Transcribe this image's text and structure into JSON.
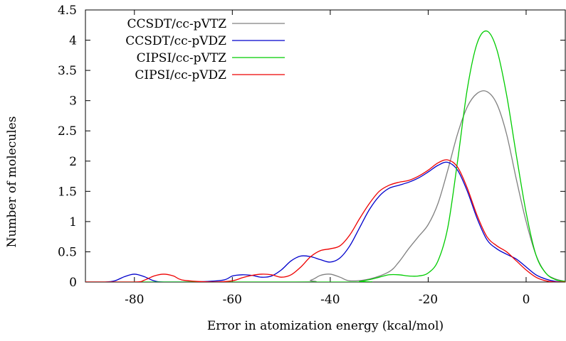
{
  "chart_data": {
    "type": "line",
    "title": "",
    "xlabel": "Error in atomization energy (kcal/mol)",
    "ylabel": "Number of molecules",
    "xlim": [
      -90,
      8
    ],
    "ylim": [
      0,
      4.5
    ],
    "xticks": [
      -80,
      -60,
      -40,
      -20,
      0
    ],
    "yticks": [
      0,
      0.5,
      1,
      1.5,
      2,
      2.5,
      3,
      3.5,
      4,
      4.5
    ],
    "grid": false,
    "legend_position": "top-left",
    "series": [
      {
        "name": "CCSDT/cc-pVTZ",
        "color": "#808080",
        "x": [
          -90,
          -47,
          -44,
          -42,
          -40,
          -38,
          -36,
          -32,
          -28,
          -26,
          -24,
          -22,
          -20,
          -18,
          -16,
          -14,
          -12,
          -10,
          -8,
          -6,
          -4,
          -2,
          0,
          2,
          4,
          6,
          8
        ],
        "y": [
          0,
          0,
          0.03,
          0.11,
          0.13,
          0.08,
          0.02,
          0.05,
          0.17,
          0.33,
          0.55,
          0.75,
          0.95,
          1.3,
          1.85,
          2.45,
          2.9,
          3.12,
          3.15,
          2.95,
          2.45,
          1.7,
          1.0,
          0.45,
          0.15,
          0.05,
          0.01
        ]
      },
      {
        "name": "CCSDT/cc-pVDZ",
        "color": "#0000cc",
        "x": [
          -90,
          -86,
          -84,
          -82,
          -80,
          -78,
          -76,
          -74,
          -68,
          -62,
          -60,
          -58,
          -56,
          -54,
          -52,
          -50,
          -48,
          -46,
          -44,
          -42,
          -40,
          -38,
          -36,
          -34,
          -32,
          -30,
          -28,
          -26,
          -24,
          -22,
          -20,
          -18,
          -16,
          -14,
          -12,
          -10,
          -8,
          -6,
          -4,
          -2,
          0,
          2,
          4,
          6,
          8
        ],
        "y": [
          0,
          0,
          0.02,
          0.09,
          0.13,
          0.09,
          0.02,
          0,
          0,
          0.03,
          0.1,
          0.12,
          0.11,
          0.08,
          0.1,
          0.2,
          0.35,
          0.43,
          0.42,
          0.37,
          0.33,
          0.4,
          0.6,
          0.9,
          1.2,
          1.42,
          1.55,
          1.6,
          1.65,
          1.72,
          1.82,
          1.93,
          1.98,
          1.85,
          1.5,
          1.05,
          0.7,
          0.55,
          0.46,
          0.38,
          0.25,
          0.12,
          0.05,
          0.01,
          0
        ]
      },
      {
        "name": "CIPSI/cc-pVTZ",
        "color": "#00cc00",
        "x": [
          -90,
          -36,
          -34,
          -32,
          -30,
          -28,
          -26,
          -24,
          -22,
          -20,
          -18,
          -16,
          -14,
          -12,
          -10,
          -8,
          -6,
          -4,
          -2,
          0,
          2,
          4,
          6,
          8
        ],
        "y": [
          0,
          0,
          0.01,
          0.04,
          0.08,
          0.12,
          0.12,
          0.1,
          0.1,
          0.15,
          0.35,
          0.9,
          2.0,
          3.2,
          3.95,
          4.15,
          3.85,
          3.1,
          2.1,
          1.15,
          0.45,
          0.15,
          0.04,
          0.01
        ]
      },
      {
        "name": "CIPSI/cc-pVDZ",
        "color": "#ee0000",
        "x": [
          -90,
          -80,
          -78,
          -76,
          -74,
          -72,
          -70,
          -64,
          -60,
          -58,
          -56,
          -54,
          -52,
          -50,
          -48,
          -46,
          -44,
          -42,
          -40,
          -38,
          -36,
          -34,
          -32,
          -30,
          -28,
          -26,
          -24,
          -22,
          -20,
          -18,
          -16,
          -14,
          -12,
          -10,
          -8,
          -6,
          -4,
          -2,
          0,
          2,
          4,
          6,
          8
        ],
        "y": [
          0,
          0,
          0.03,
          0.1,
          0.13,
          0.1,
          0.03,
          0,
          0.02,
          0.07,
          0.11,
          0.13,
          0.12,
          0.08,
          0.12,
          0.25,
          0.42,
          0.52,
          0.55,
          0.6,
          0.78,
          1.05,
          1.3,
          1.5,
          1.6,
          1.65,
          1.68,
          1.75,
          1.85,
          1.97,
          2.02,
          1.9,
          1.55,
          1.1,
          0.75,
          0.6,
          0.5,
          0.35,
          0.2,
          0.08,
          0.02,
          0,
          0
        ]
      }
    ]
  }
}
